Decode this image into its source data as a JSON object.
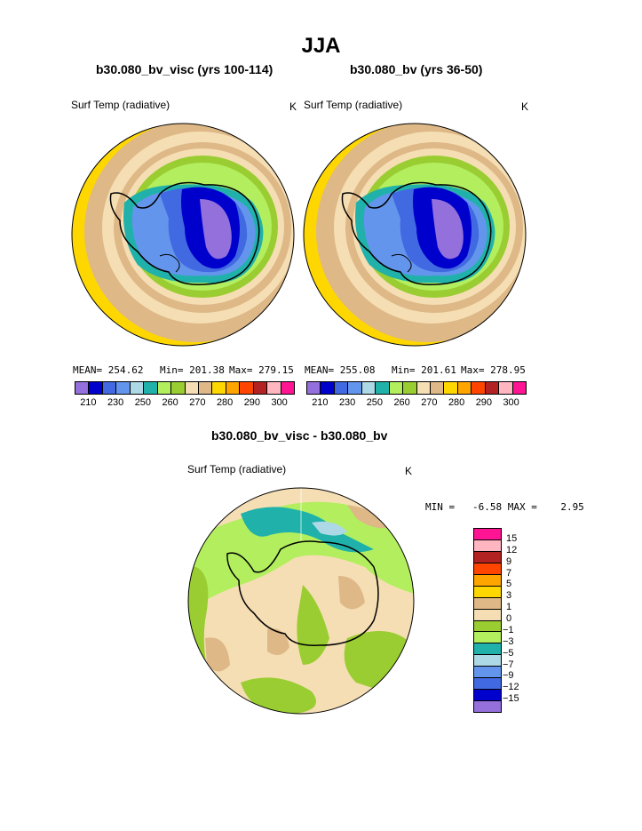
{
  "title": "JJA",
  "panels": [
    {
      "subtitle": "b30.080_bv_visc (yrs 100-114)",
      "field_label": "Surf Temp (radiative)",
      "units": "K",
      "stats": {
        "mean": "MEAN= 254.62",
        "min": "Min= 201.38",
        "max": "Max= 279.15"
      }
    },
    {
      "subtitle": "b30.080_bv (yrs 36-50)",
      "field_label": "Surf Temp (radiative)",
      "units": "K",
      "stats": {
        "mean": "MEAN= 255.08",
        "min": "Min= 201.61",
        "max": "Max= 278.95"
      }
    }
  ],
  "diff_panel": {
    "subtitle": "b30.080_bv_visc - b30.080_bv",
    "field_label": "Surf Temp (radiative)",
    "units": "K",
    "minmax": "MIN =   -6.58 MAX =    2.95"
  },
  "colorbar_abs": {
    "colors": [
      "#9370DB",
      "#0000CD",
      "#4169E1",
      "#6495ED",
      "#ADD8E6",
      "#20B2AA",
      "#B2EE5E",
      "#9ACD32",
      "#F5DEB3",
      "#DEB887",
      "#FFD700",
      "#FFA500",
      "#FF4500",
      "#B22222",
      "#FFB6C1",
      "#FF1493"
    ],
    "labels": [
      "210",
      "230",
      "250",
      "260",
      "270",
      "280",
      "290",
      "300"
    ]
  },
  "colorbar_diff": {
    "colors": [
      "#FF1493",
      "#FFB6C1",
      "#B22222",
      "#FF4500",
      "#FFA500",
      "#FFD700",
      "#DEB887",
      "#F5DEB3",
      "#9ACD32",
      "#B2EE5E",
      "#20B2AA",
      "#ADD8E6",
      "#6495ED",
      "#4169E1",
      "#0000CD",
      "#9370DB"
    ],
    "labels": [
      "15",
      "12",
      "9",
      "7",
      "5",
      "3",
      "1",
      "0",
      "−1",
      "−3",
      "−5",
      "−7",
      "−9",
      "−12",
      "−15"
    ]
  }
}
